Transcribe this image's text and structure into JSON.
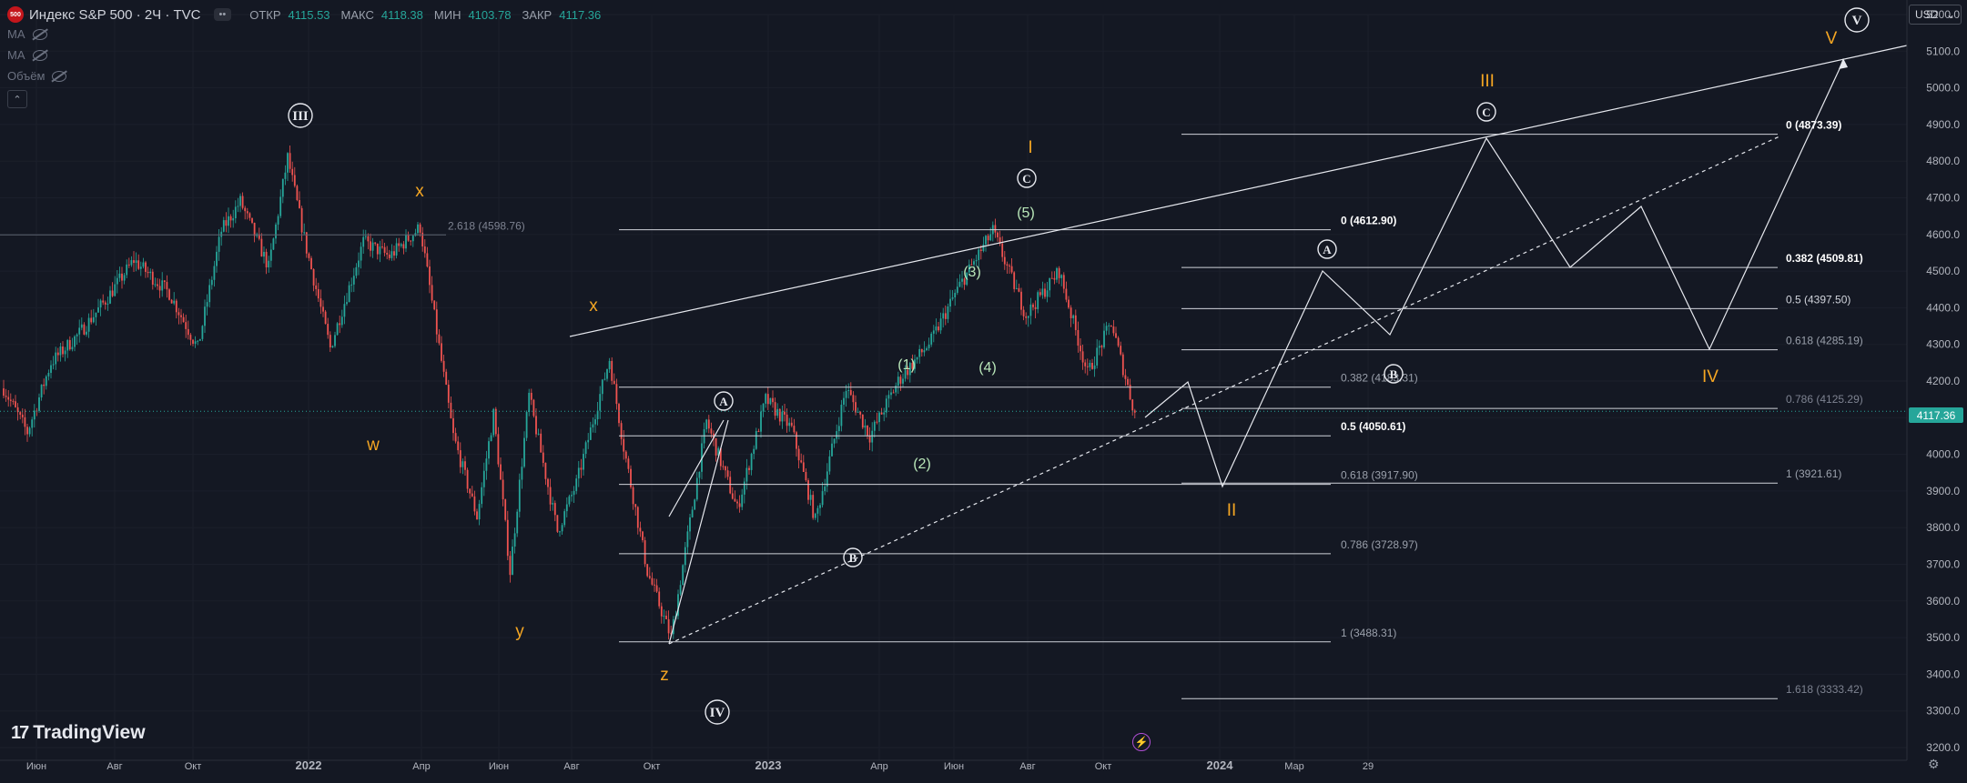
{
  "header": {
    "symbol_badge": "500",
    "title": "Индекс S&P 500 · 2Ч · TVC",
    "ohlc": [
      {
        "label": "ОТКР",
        "value": "4115.53"
      },
      {
        "label": "МАКС",
        "value": "4118.38"
      },
      {
        "label": "МИН",
        "value": "4103.78"
      },
      {
        "label": "ЗАКР",
        "value": "4117.36"
      }
    ],
    "indicators": [
      "MA",
      "MA",
      "Объём"
    ],
    "currency": "USD",
    "currency_arrow": "⌄",
    "collapse_icon": "⌃"
  },
  "branding": {
    "logo_text": "TradingView",
    "logo_mark": "17"
  },
  "colors": {
    "background": "#141823",
    "up": "#26a69a",
    "down": "#ef5350",
    "wave_orange": "#f5a623",
    "wave_green": "#b9e7b9",
    "line": "#d1d4dc"
  },
  "last_price": "4117.36",
  "chart_data": {
    "type": "candlestick",
    "timeframe": "2Ч",
    "y_axis": {
      "min": 3200,
      "max": 5200,
      "ticks": [
        3200,
        3300,
        3400,
        3500,
        3600,
        3700,
        3800,
        3900,
        4000,
        4100,
        4200,
        4300,
        4400,
        4500,
        4600,
        4700,
        4800,
        4900,
        5000,
        5100,
        5200
      ]
    },
    "x_axis_labels": [
      "Июн",
      "Авг",
      "Окт",
      "2022",
      "Апр",
      "Июн",
      "Авг",
      "Окт",
      "2023",
      "Апр",
      "Июн",
      "Авг",
      "Окт",
      "2024",
      "Мар",
      "29"
    ],
    "price_path": [
      [
        0,
        4180
      ],
      [
        10,
        4060
      ],
      [
        20,
        4250
      ],
      [
        32,
        4330
      ],
      [
        43,
        4420
      ],
      [
        55,
        4530
      ],
      [
        70,
        4440
      ],
      [
        82,
        4290
      ],
      [
        92,
        4610
      ],
      [
        100,
        4690
      ],
      [
        112,
        4510
      ],
      [
        120,
        4810
      ],
      [
        128,
        4560
      ],
      [
        138,
        4290
      ],
      [
        152,
        4580
      ],
      [
        163,
        4540
      ],
      [
        176,
        4620
      ],
      [
        190,
        4050
      ],
      [
        200,
        3830
      ],
      [
        207,
        4110
      ],
      [
        214,
        3680
      ],
      [
        222,
        4160
      ],
      [
        234,
        3790
      ],
      [
        242,
        3920
      ],
      [
        256,
        4260
      ],
      [
        262,
        4020
      ],
      [
        272,
        3680
      ],
      [
        282,
        3500
      ],
      [
        297,
        4090
      ],
      [
        310,
        3850
      ],
      [
        322,
        4150
      ],
      [
        333,
        4070
      ],
      [
        343,
        3820
      ],
      [
        356,
        4180
      ],
      [
        366,
        4050
      ],
      [
        378,
        4200
      ],
      [
        392,
        4310
      ],
      [
        403,
        4450
      ],
      [
        418,
        4610
      ],
      [
        432,
        4380
      ],
      [
        446,
        4500
      ],
      [
        458,
        4220
      ],
      [
        468,
        4360
      ],
      [
        478,
        4110
      ]
    ],
    "fib_levels": [
      {
        "label": "2.618 (4598.76)",
        "value": 4598.76
      },
      {
        "label": "0 (4612.90)",
        "value": 4612.9
      },
      {
        "label": "0.382 (4183.31)",
        "value": 4183.31
      },
      {
        "label": "0.5 (4050.61)",
        "value": 4050.61
      },
      {
        "label": "0.618 (3917.90)",
        "value": 3917.9
      },
      {
        "label": "0.786 (3728.97)",
        "value": 3728.97
      },
      {
        "label": "1 (3488.31)",
        "value": 3488.31
      },
      {
        "label": "0 (4873.39)",
        "value": 4873.39
      },
      {
        "label": "0.382 (4509.81)",
        "value": 4509.81
      },
      {
        "label": "0.5 (4397.50)",
        "value": 4397.5
      },
      {
        "label": "0.618 (4285.19)",
        "value": 4285.19
      },
      {
        "label": "0.786 (4125.29)",
        "value": 4125.29
      },
      {
        "label": "1 (3921.61)",
        "value": 3921.61
      },
      {
        "label": "1.618 (3333.42)",
        "value": 3333.42
      }
    ],
    "wave_labels": [
      {
        "text": "III",
        "style": "circle"
      },
      {
        "text": "x",
        "style": "orange"
      },
      {
        "text": "w",
        "style": "orange"
      },
      {
        "text": "x",
        "style": "orange"
      },
      {
        "text": "y",
        "style": "orange"
      },
      {
        "text": "z",
        "style": "orange"
      },
      {
        "text": "IV",
        "style": "circle"
      },
      {
        "text": "A",
        "style": "circle-small"
      },
      {
        "text": "B",
        "style": "circle-small"
      },
      {
        "text": "(1)",
        "style": "green"
      },
      {
        "text": "(2)",
        "style": "green"
      },
      {
        "text": "(3)",
        "style": "green"
      },
      {
        "text": "(4)",
        "style": "green"
      },
      {
        "text": "(5)",
        "style": "green"
      },
      {
        "text": "C",
        "style": "circle-small"
      },
      {
        "text": "I",
        "style": "orange"
      },
      {
        "text": "A",
        "style": "circle-small"
      },
      {
        "text": "B",
        "style": "circle-small"
      },
      {
        "text": "II",
        "style": "orange"
      },
      {
        "text": "C",
        "style": "circle-small"
      },
      {
        "text": "III",
        "style": "orange"
      },
      {
        "text": "IV",
        "style": "orange"
      },
      {
        "text": "V",
        "style": "orange"
      },
      {
        "text": "V",
        "style": "circle"
      }
    ]
  }
}
